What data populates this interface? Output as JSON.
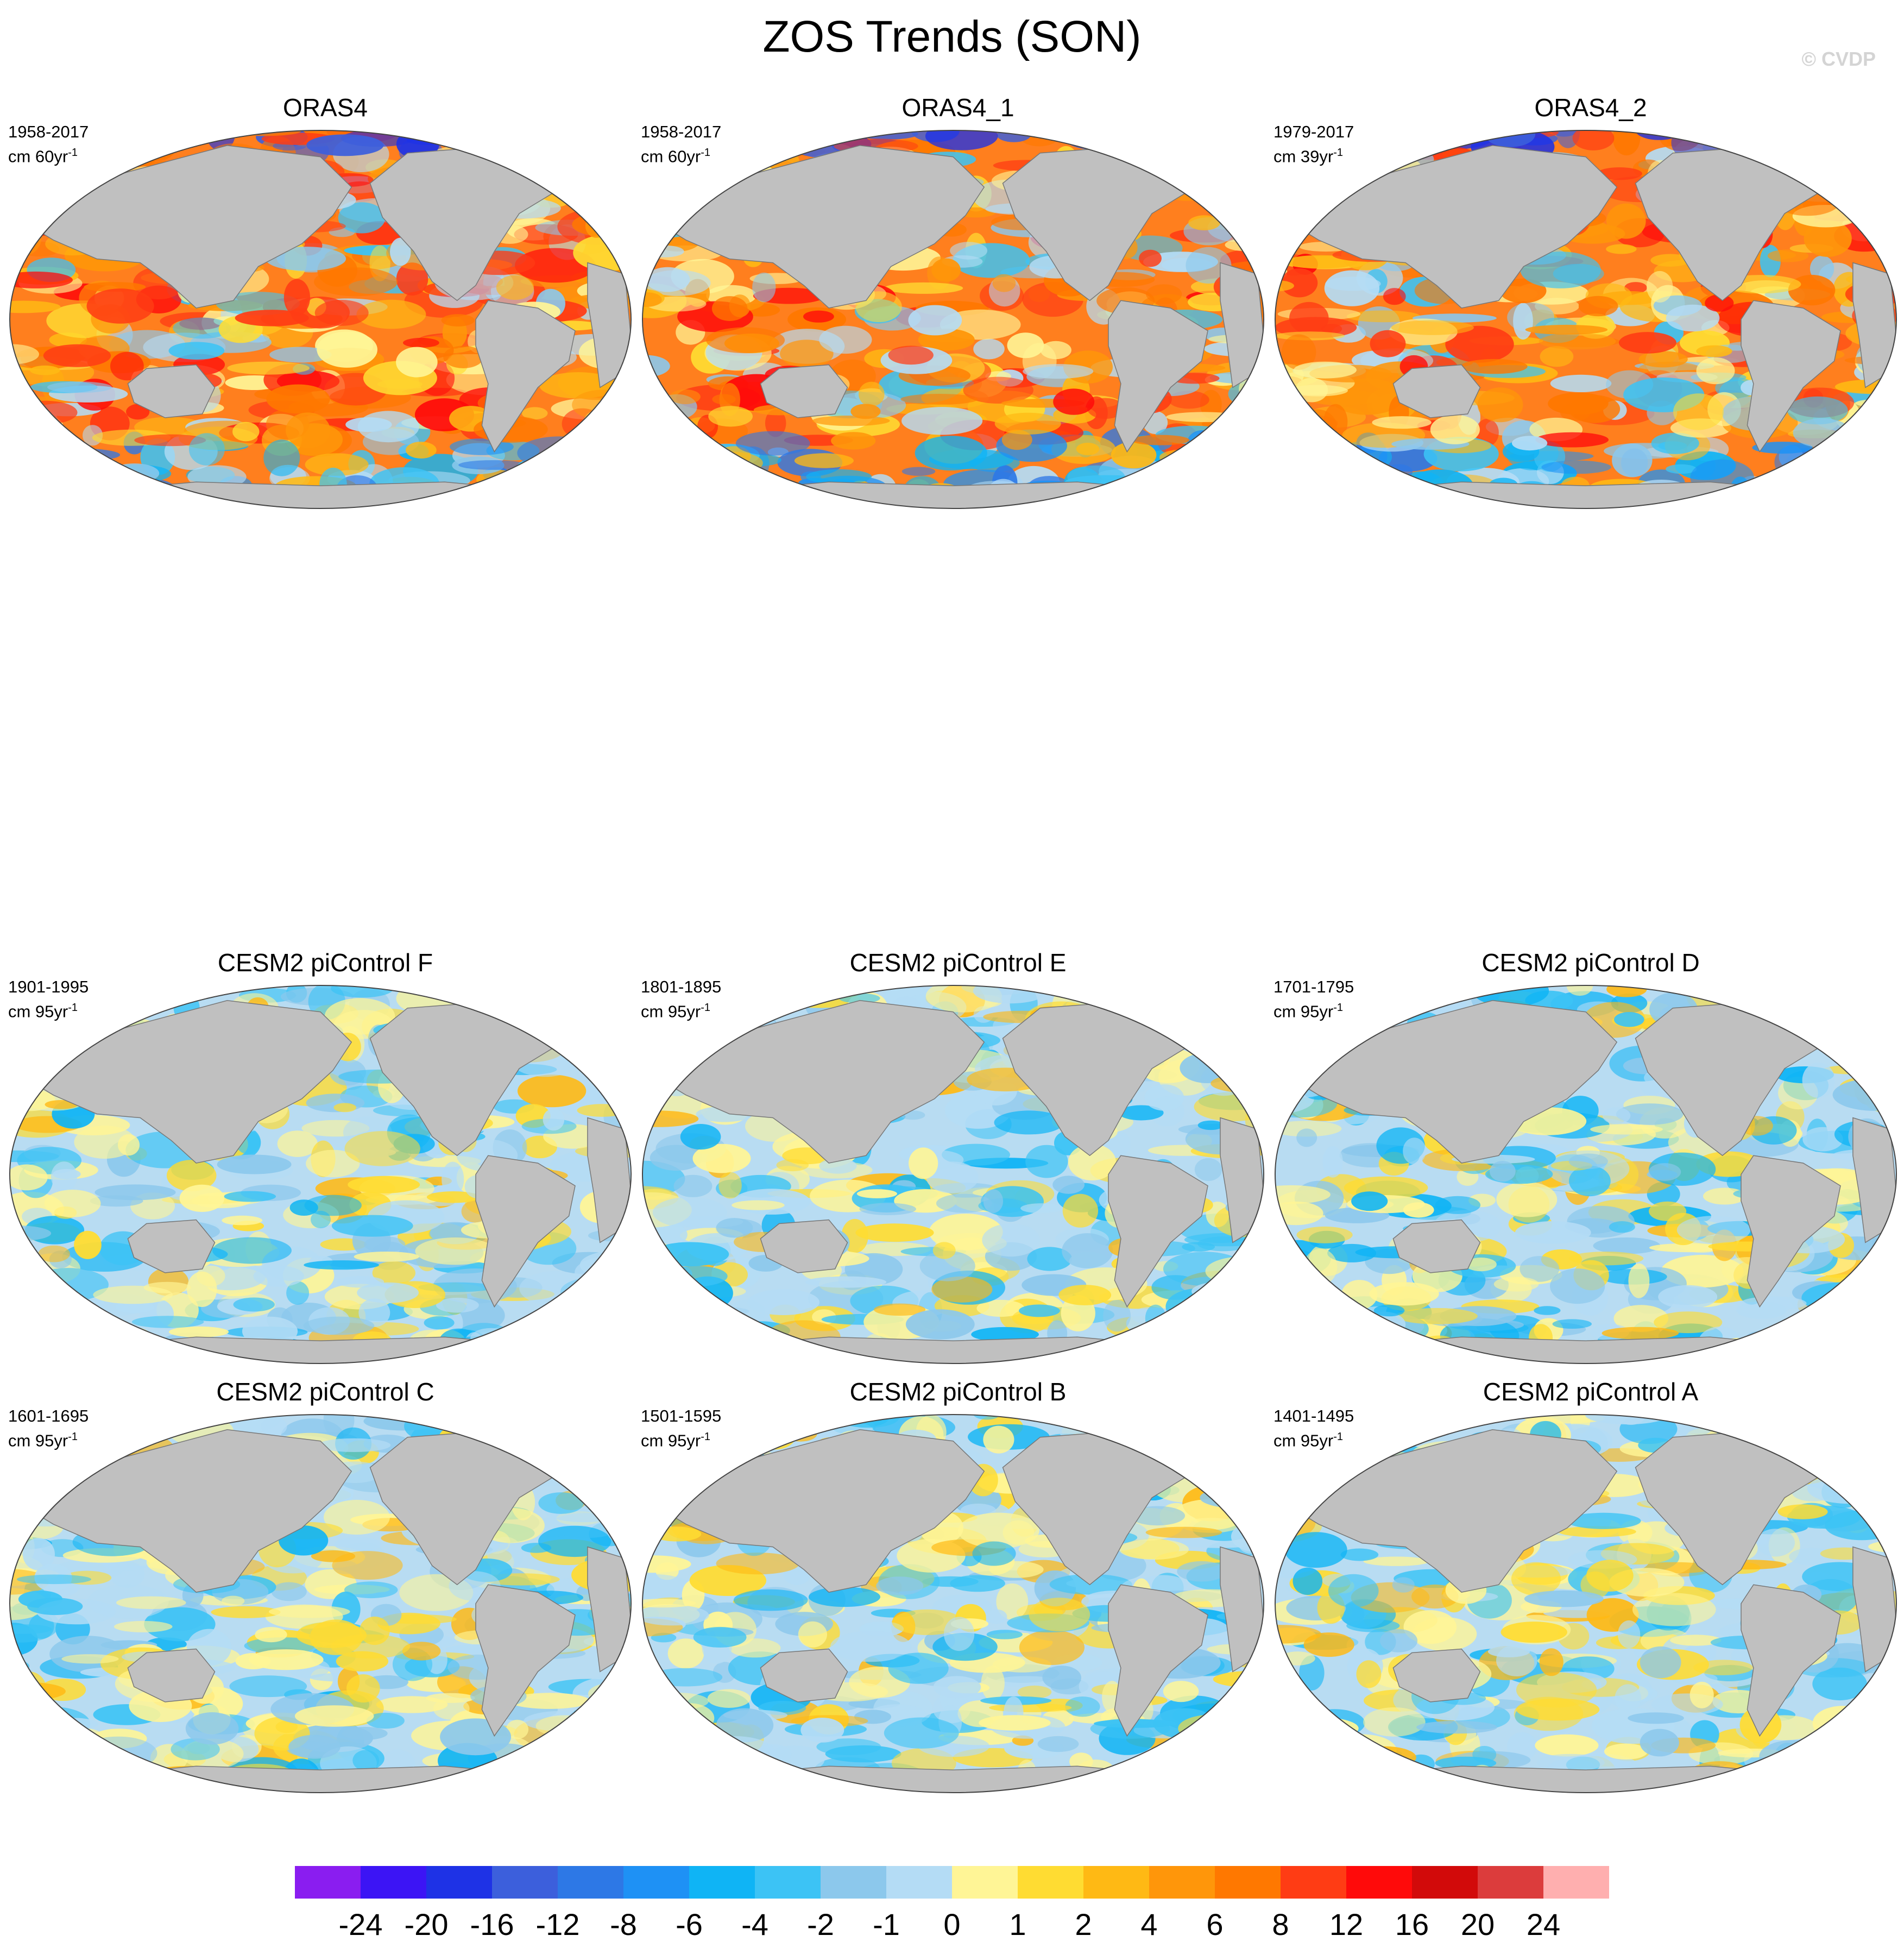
{
  "title": "ZOS Trends (SON)",
  "watermark": "© CVDP",
  "panels": [
    {
      "name": "ORAS4",
      "period": "1958-2017",
      "units": "cm 60yr",
      "units_sup": "-1",
      "theme": "warm"
    },
    {
      "name": "ORAS4_1",
      "period": "1958-2017",
      "units": "cm 60yr",
      "units_sup": "-1",
      "theme": "warm"
    },
    {
      "name": "ORAS4_2",
      "period": "1979-2017",
      "units": "cm 39yr",
      "units_sup": "-1",
      "theme": "warm"
    },
    {
      "name": "CESM2 piControl F",
      "period": "1901-1995",
      "units": "cm 95yr",
      "units_sup": "-1",
      "theme": "mixed"
    },
    {
      "name": "CESM2 piControl E",
      "period": "1801-1895",
      "units": "cm 95yr",
      "units_sup": "-1",
      "theme": "mixed"
    },
    {
      "name": "CESM2 piControl D",
      "period": "1701-1795",
      "units": "cm 95yr",
      "units_sup": "-1",
      "theme": "mixed"
    },
    {
      "name": "CESM2 piControl C",
      "period": "1601-1695",
      "units": "cm 95yr",
      "units_sup": "-1",
      "theme": "mixed"
    },
    {
      "name": "CESM2 piControl B",
      "period": "1501-1595",
      "units": "cm 95yr",
      "units_sup": "-1",
      "theme": "mixed"
    },
    {
      "name": "CESM2 piControl A",
      "period": "1401-1495",
      "units": "cm 95yr",
      "units_sup": "-1",
      "theme": "mixed"
    }
  ],
  "colorbar": {
    "colors": [
      "#8a1df0",
      "#3c14f5",
      "#1e32e6",
      "#3c5fdc",
      "#2d78e6",
      "#1e91f5",
      "#0fb4f5",
      "#3cc3f5",
      "#8cc8ec",
      "#b4dcf5",
      "#fff596",
      "#ffdc32",
      "#ffb914",
      "#ff960a",
      "#ff7800",
      "#ff3c14",
      "#ff0a0a",
      "#d20a0a",
      "#dc3c3c",
      "#ffafaf"
    ],
    "labels": [
      "-24",
      "-20",
      "-16",
      "-12",
      "-8",
      "-6",
      "-4",
      "-2",
      "-1",
      "0",
      "1",
      "2",
      "4",
      "6",
      "8",
      "12",
      "16",
      "20",
      "24"
    ]
  },
  "colors": {
    "land": "#c0c0c0",
    "coast": "#777777",
    "ocean_warm_base": "#ff7f1e",
    "ocean_mixed_base": "#b8dcf2"
  }
}
